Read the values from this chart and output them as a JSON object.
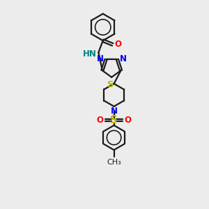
{
  "bg_color": "#ececec",
  "bond_color": "#1a1a1a",
  "N_color": "#0000ff",
  "O_color": "#ff0000",
  "S_color": "#b8b800",
  "NH_color": "#008080",
  "figsize": [
    3.0,
    3.0
  ],
  "dpi": 100,
  "xlim": [
    0,
    10
  ],
  "ylim": [
    0,
    13
  ]
}
